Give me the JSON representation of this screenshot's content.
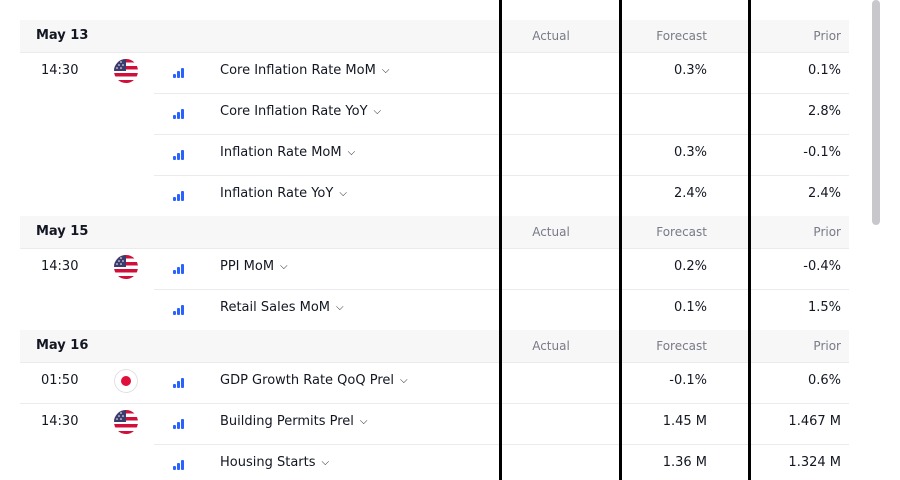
{
  "columns": {
    "actual": "Actual",
    "forecast": "Forecast",
    "prior": "Prior"
  },
  "colors": {
    "impact_bar": "#2962ff",
    "header_bg": "#f7f7f8",
    "muted_text": "#787b86"
  },
  "groups": [
    {
      "date": "May 13",
      "events": [
        {
          "time": "14:30",
          "country": "us-flag",
          "name": "Core Inflation Rate MoM",
          "actual": "",
          "forecast": "0.3%",
          "prior": "0.1%"
        },
        {
          "time": "",
          "country": "",
          "name": "Core Inflation Rate YoY",
          "actual": "",
          "forecast": "",
          "prior": "2.8%"
        },
        {
          "time": "",
          "country": "",
          "name": "Inflation Rate MoM",
          "actual": "",
          "forecast": "0.3%",
          "prior": "-0.1%"
        },
        {
          "time": "",
          "country": "",
          "name": "Inflation Rate YoY",
          "actual": "",
          "forecast": "2.4%",
          "prior": "2.4%"
        }
      ]
    },
    {
      "date": "May 15",
      "events": [
        {
          "time": "14:30",
          "country": "us-flag",
          "name": "PPI MoM",
          "actual": "",
          "forecast": "0.2%",
          "prior": "-0.4%"
        },
        {
          "time": "",
          "country": "",
          "name": "Retail Sales MoM",
          "actual": "",
          "forecast": "0.1%",
          "prior": "1.5%"
        }
      ]
    },
    {
      "date": "May 16",
      "events": [
        {
          "time": "01:50",
          "country": "jp-flag",
          "name": "GDP Growth Rate QoQ Prel",
          "actual": "",
          "forecast": "-0.1%",
          "prior": "0.6%"
        },
        {
          "time": "14:30",
          "country": "us-flag",
          "name": "Building Permits Prel",
          "actual": "",
          "forecast": "1.45 M",
          "prior": "1.467 M"
        },
        {
          "time": "",
          "country": "",
          "name": "Housing Starts",
          "actual": "",
          "forecast": "1.36 M",
          "prior": "1.324 M"
        }
      ]
    }
  ]
}
